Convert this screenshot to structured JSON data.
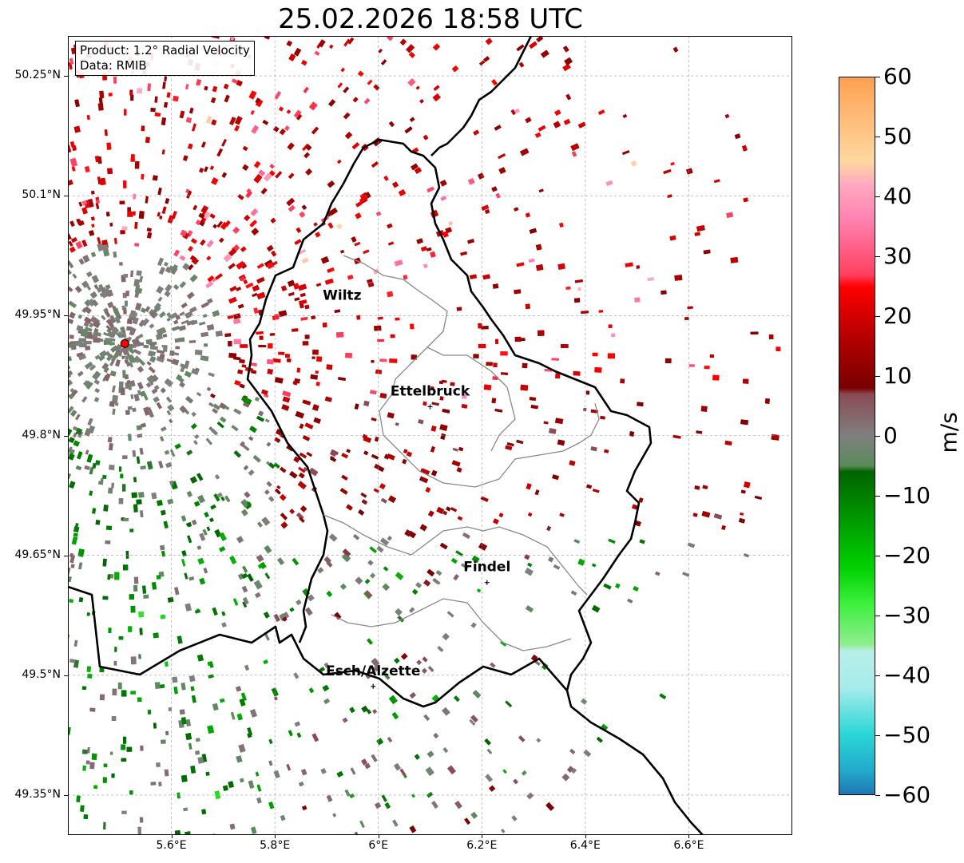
{
  "title": "25.02.2026 18:58 UTC",
  "info": {
    "product": "Product: 1.2° Radial Velocity",
    "data": "Data: RMIB"
  },
  "axes": {
    "lat_ticks": [
      "50.25°N",
      "50.1°N",
      "49.95°N",
      "49.8°N",
      "49.65°N",
      "49.5°N",
      "49.35°N"
    ],
    "lon_ticks": [
      "5.6°E",
      "5.8°E",
      "6°E",
      "6.2°E",
      "6.4°E",
      "6.6°E"
    ],
    "lat_range": [
      49.3,
      50.3
    ],
    "lon_range": [
      5.4,
      6.8
    ]
  },
  "cities": [
    {
      "name": "Wiltz",
      "lon": 5.93,
      "lat": 49.97,
      "marker": false
    },
    {
      "name": "Ettelbruck",
      "lon": 6.1,
      "lat": 49.85,
      "marker": true
    },
    {
      "name": "Findel",
      "lon": 6.21,
      "lat": 49.63,
      "marker": true
    },
    {
      "name": "Esch/Alzette",
      "lon": 5.99,
      "lat": 49.5,
      "marker": true
    }
  ],
  "radar_site": {
    "lon": 5.51,
    "lat": 49.915,
    "color": "#ff0000"
  },
  "colorbar": {
    "unit": "m/s",
    "min": -60,
    "max": 60,
    "tick_labels": [
      "60",
      "50",
      "40",
      "30",
      "20",
      "10",
      "0",
      "−10",
      "−20",
      "−30",
      "−40",
      "−50",
      "−60"
    ],
    "tick_values": [
      60,
      50,
      40,
      30,
      20,
      10,
      0,
      -10,
      -20,
      -30,
      -40,
      -50,
      -60
    ],
    "stops": [
      {
        "v": -60,
        "c": "#1f77b4"
      },
      {
        "v": -56,
        "c": "#23aacc"
      },
      {
        "v": -50,
        "c": "#2ad6d6"
      },
      {
        "v": -42,
        "c": "#a8ecec"
      },
      {
        "v": -36,
        "c": "#b8eee8"
      },
      {
        "v": -35,
        "c": "#90ee90"
      },
      {
        "v": -28,
        "c": "#3cf03c"
      },
      {
        "v": -22,
        "c": "#00d000"
      },
      {
        "v": -15,
        "c": "#00a000"
      },
      {
        "v": -6,
        "c": "#006400"
      },
      {
        "v": -5,
        "c": "#5a8a5a"
      },
      {
        "v": 0,
        "c": "#808080"
      },
      {
        "v": 7,
        "c": "#8b4a55"
      },
      {
        "v": 8,
        "c": "#7a0000"
      },
      {
        "v": 16,
        "c": "#b00000"
      },
      {
        "v": 25,
        "c": "#ff0000"
      },
      {
        "v": 27,
        "c": "#ff4060"
      },
      {
        "v": 36,
        "c": "#ff80b0"
      },
      {
        "v": 42,
        "c": "#ffa8c0"
      },
      {
        "v": 46,
        "c": "#ffd8a0"
      },
      {
        "v": 52,
        "c": "#ffc080"
      },
      {
        "v": 60,
        "c": "#ffa050"
      }
    ]
  },
  "colors": {
    "inbound_green": "#008000",
    "outbound_red": "#c00000",
    "near_zero": "#808080"
  }
}
